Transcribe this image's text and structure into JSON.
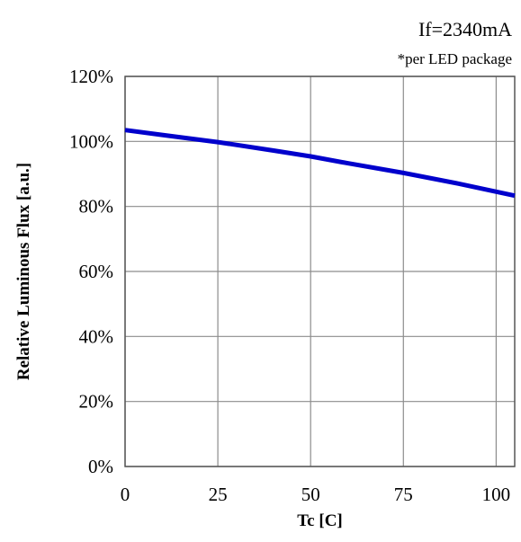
{
  "annotations": {
    "condition": "If=2340mA",
    "note": "*per LED package"
  },
  "chart_data": {
    "type": "line",
    "title": "",
    "xlabel": "Tc [C]",
    "ylabel": "Relative Luminous Flux [a.u.]",
    "xlim": [
      0,
      105
    ],
    "ylim": [
      0,
      1.2
    ],
    "x_ticks": [
      0,
      25,
      50,
      75,
      100
    ],
    "x_tick_labels": [
      "0",
      "25",
      "50",
      "75",
      "100"
    ],
    "y_ticks": [
      0,
      0.2,
      0.4,
      0.6,
      0.8,
      1.0,
      1.2
    ],
    "y_tick_labels": [
      "0%",
      "20%",
      "40%",
      "60%",
      "80%",
      "100%",
      "120%"
    ],
    "grid": true,
    "legend": "none",
    "series": [
      {
        "color": "#0000cc",
        "x": [
          0,
          10,
          25,
          40,
          50,
          60,
          75,
          90,
          105
        ],
        "y": [
          1.035,
          1.02,
          0.998,
          0.972,
          0.954,
          0.933,
          0.903,
          0.87,
          0.833
        ]
      }
    ]
  },
  "colors": {
    "grid": "#8c8c8c",
    "frame": "#555555",
    "text": "#000000"
  }
}
